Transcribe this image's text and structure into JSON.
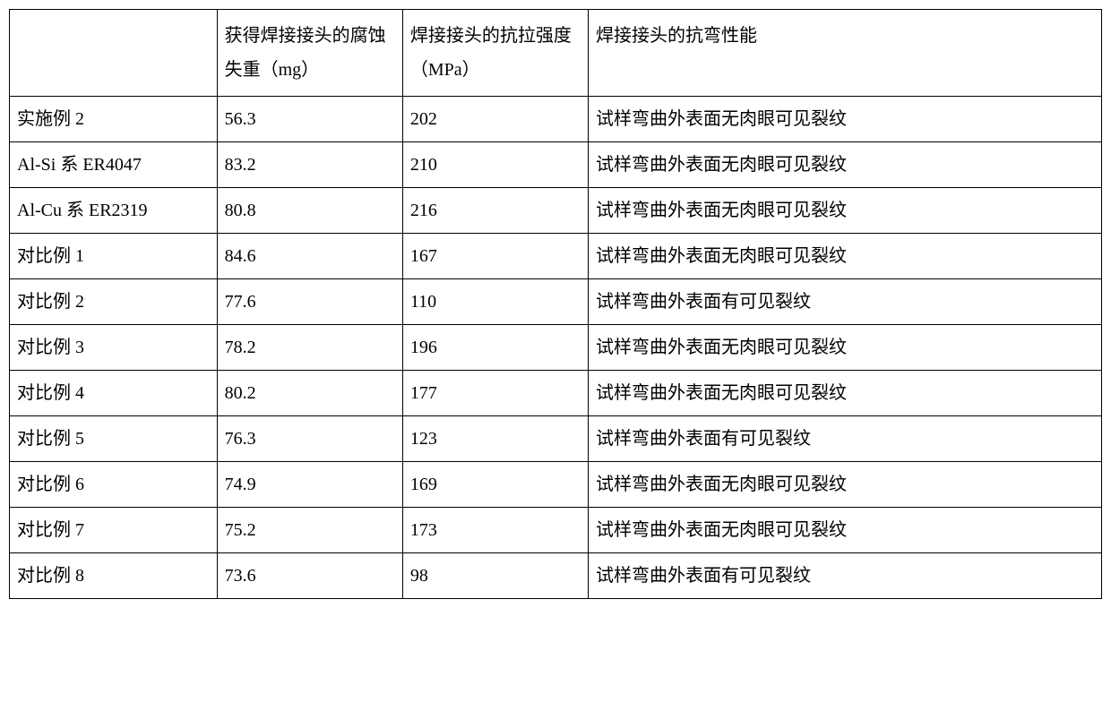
{
  "table": {
    "columns": [
      "",
      "获得焊接接头的腐蚀失重（mg）",
      "焊接接头的抗拉强度（MPa）",
      "焊接接头的抗弯性能"
    ],
    "rows": [
      [
        "实施例 2",
        "56.3",
        "202",
        "试样弯曲外表面无肉眼可见裂纹"
      ],
      [
        "Al-Si 系 ER4047",
        "83.2",
        "210",
        "试样弯曲外表面无肉眼可见裂纹"
      ],
      [
        "Al-Cu 系 ER2319",
        "80.8",
        "216",
        "试样弯曲外表面无肉眼可见裂纹"
      ],
      [
        "对比例 1",
        "84.6",
        "167",
        "试样弯曲外表面无肉眼可见裂纹"
      ],
      [
        "对比例 2",
        "77.6",
        "110",
        "试样弯曲外表面有可见裂纹"
      ],
      [
        "对比例 3",
        "78.2",
        "196",
        "试样弯曲外表面无肉眼可见裂纹"
      ],
      [
        "对比例 4",
        "80.2",
        "177",
        "试样弯曲外表面无肉眼可见裂纹"
      ],
      [
        "对比例 5",
        "76.3",
        "123",
        "试样弯曲外表面有可见裂纹"
      ],
      [
        "对比例 6",
        "74.9",
        "169",
        "试样弯曲外表面无肉眼可见裂纹"
      ],
      [
        "对比例 7",
        "75.2",
        "173",
        "试样弯曲外表面无肉眼可见裂纹"
      ],
      [
        "对比例 8",
        "73.6",
        "98",
        "试样弯曲外表面有可见裂纹"
      ]
    ],
    "column_widths": [
      "19%",
      "17%",
      "17%",
      "47%"
    ],
    "border_color": "#000000",
    "background_color": "#ffffff",
    "font_size": 20,
    "header_row_height": 90,
    "body_row_height": 50
  }
}
